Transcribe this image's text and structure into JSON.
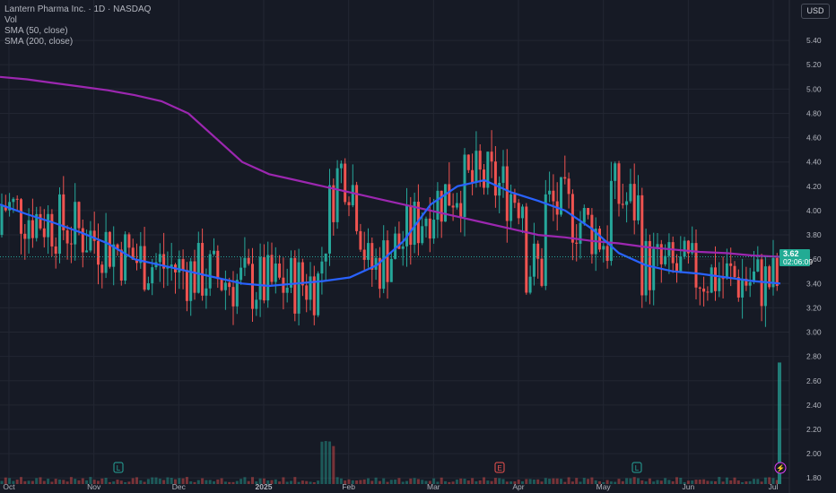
{
  "legend": {
    "title": "Lantern Pharma Inc. · 1D · NASDAQ",
    "vol": "Vol",
    "sma50": "SMA (50, close)",
    "sma200": "SMA (200, close)"
  },
  "currency_button": "USD",
  "last_price": {
    "value": "3.62",
    "countdown": "02:06:09"
  },
  "event_markers": [
    {
      "label": "L",
      "date_tick": "Nov"
    },
    {
      "label": "E",
      "date_tick": "Apr"
    },
    {
      "label": "L",
      "date_tick": "May"
    },
    {
      "label": "⚡",
      "date_tick": "Jul"
    }
  ],
  "colors": {
    "background": "#161a25",
    "up": "#26a69a",
    "down": "#ef5350",
    "sma50": "#2962ff",
    "sma200": "#9c27b0",
    "grid": "#222632"
  },
  "chart_data": {
    "type": "candlestick",
    "x_ticks": [
      "Oct",
      "Nov",
      "Dec",
      "2025",
      "Feb",
      "Mar",
      "Apr",
      "May",
      "Jun",
      "Jul"
    ],
    "y_ticks": [
      "1.80",
      "2.00",
      "2.20",
      "2.40",
      "2.60",
      "2.80",
      "3.00",
      "3.20",
      "3.40",
      "3.60",
      "3.80",
      "4.00",
      "4.20",
      "4.40",
      "4.60",
      "4.80",
      "5.00",
      "5.20",
      "5.40"
    ],
    "ylim": [
      1.75,
      5.6
    ],
    "series": [
      {
        "name": "SMA (50, close)",
        "values": [
          4.05,
          3.97,
          3.9,
          3.82,
          3.73,
          3.6,
          3.55,
          3.5,
          3.45,
          3.4,
          3.38,
          3.4,
          3.42,
          3.45,
          3.55,
          3.75,
          4.05,
          4.2,
          4.25,
          4.15,
          4.08,
          4.0,
          3.85,
          3.65,
          3.55,
          3.5,
          3.48,
          3.45,
          3.42,
          3.4
        ]
      },
      {
        "name": "SMA (200, close)",
        "values": [
          5.1,
          5.08,
          5.05,
          5.02,
          4.99,
          4.95,
          4.9,
          4.8,
          4.6,
          4.4,
          4.3,
          4.25,
          4.2,
          4.15,
          4.1,
          4.05,
          4.0,
          3.95,
          3.9,
          3.85,
          3.8,
          3.78,
          3.75,
          3.73,
          3.7,
          3.68,
          3.66,
          3.65,
          3.63,
          3.62
        ]
      }
    ],
    "grid": true
  }
}
